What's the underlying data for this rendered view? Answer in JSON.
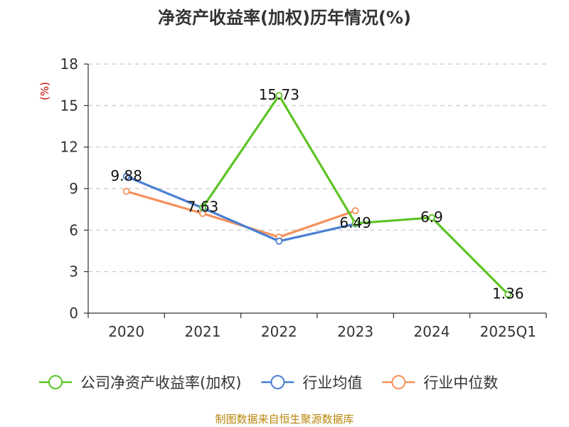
{
  "chart_data": {
    "type": "line",
    "title": "净资产收益率(加权)历年情况(%)",
    "ylabel": "(%)",
    "xlabel": "",
    "categories": [
      "2020",
      "2021",
      "2022",
      "2023",
      "2024",
      "2025Q1"
    ],
    "ylim": [
      0,
      18
    ],
    "yticks": [
      0,
      3,
      6,
      9,
      12,
      15,
      18
    ],
    "grid": "horizontal-dashed",
    "legend_position": "bottom",
    "series": [
      {
        "name": "公司净资产收益率(加权)",
        "color": "#5cc424",
        "values": [
          null,
          7.63,
          15.73,
          6.49,
          6.9,
          1.36
        ],
        "labels": [
          "",
          "7.63",
          "15.73",
          "6.49",
          "6.9",
          "1.36"
        ]
      },
      {
        "name": "行业均值",
        "color": "#4a7fd4",
        "values": [
          9.88,
          7.6,
          5.2,
          6.45,
          null,
          null
        ],
        "labels": [
          "9.88",
          "",
          "",
          "",
          "",
          ""
        ]
      },
      {
        "name": "行业中位数",
        "color": "#f5915a",
        "values": [
          8.8,
          7.2,
          5.5,
          7.4,
          null,
          null
        ],
        "labels": [
          "",
          "",
          "",
          "",
          "",
          ""
        ]
      }
    ]
  },
  "source": "制图数据来自恒生聚源数据库"
}
